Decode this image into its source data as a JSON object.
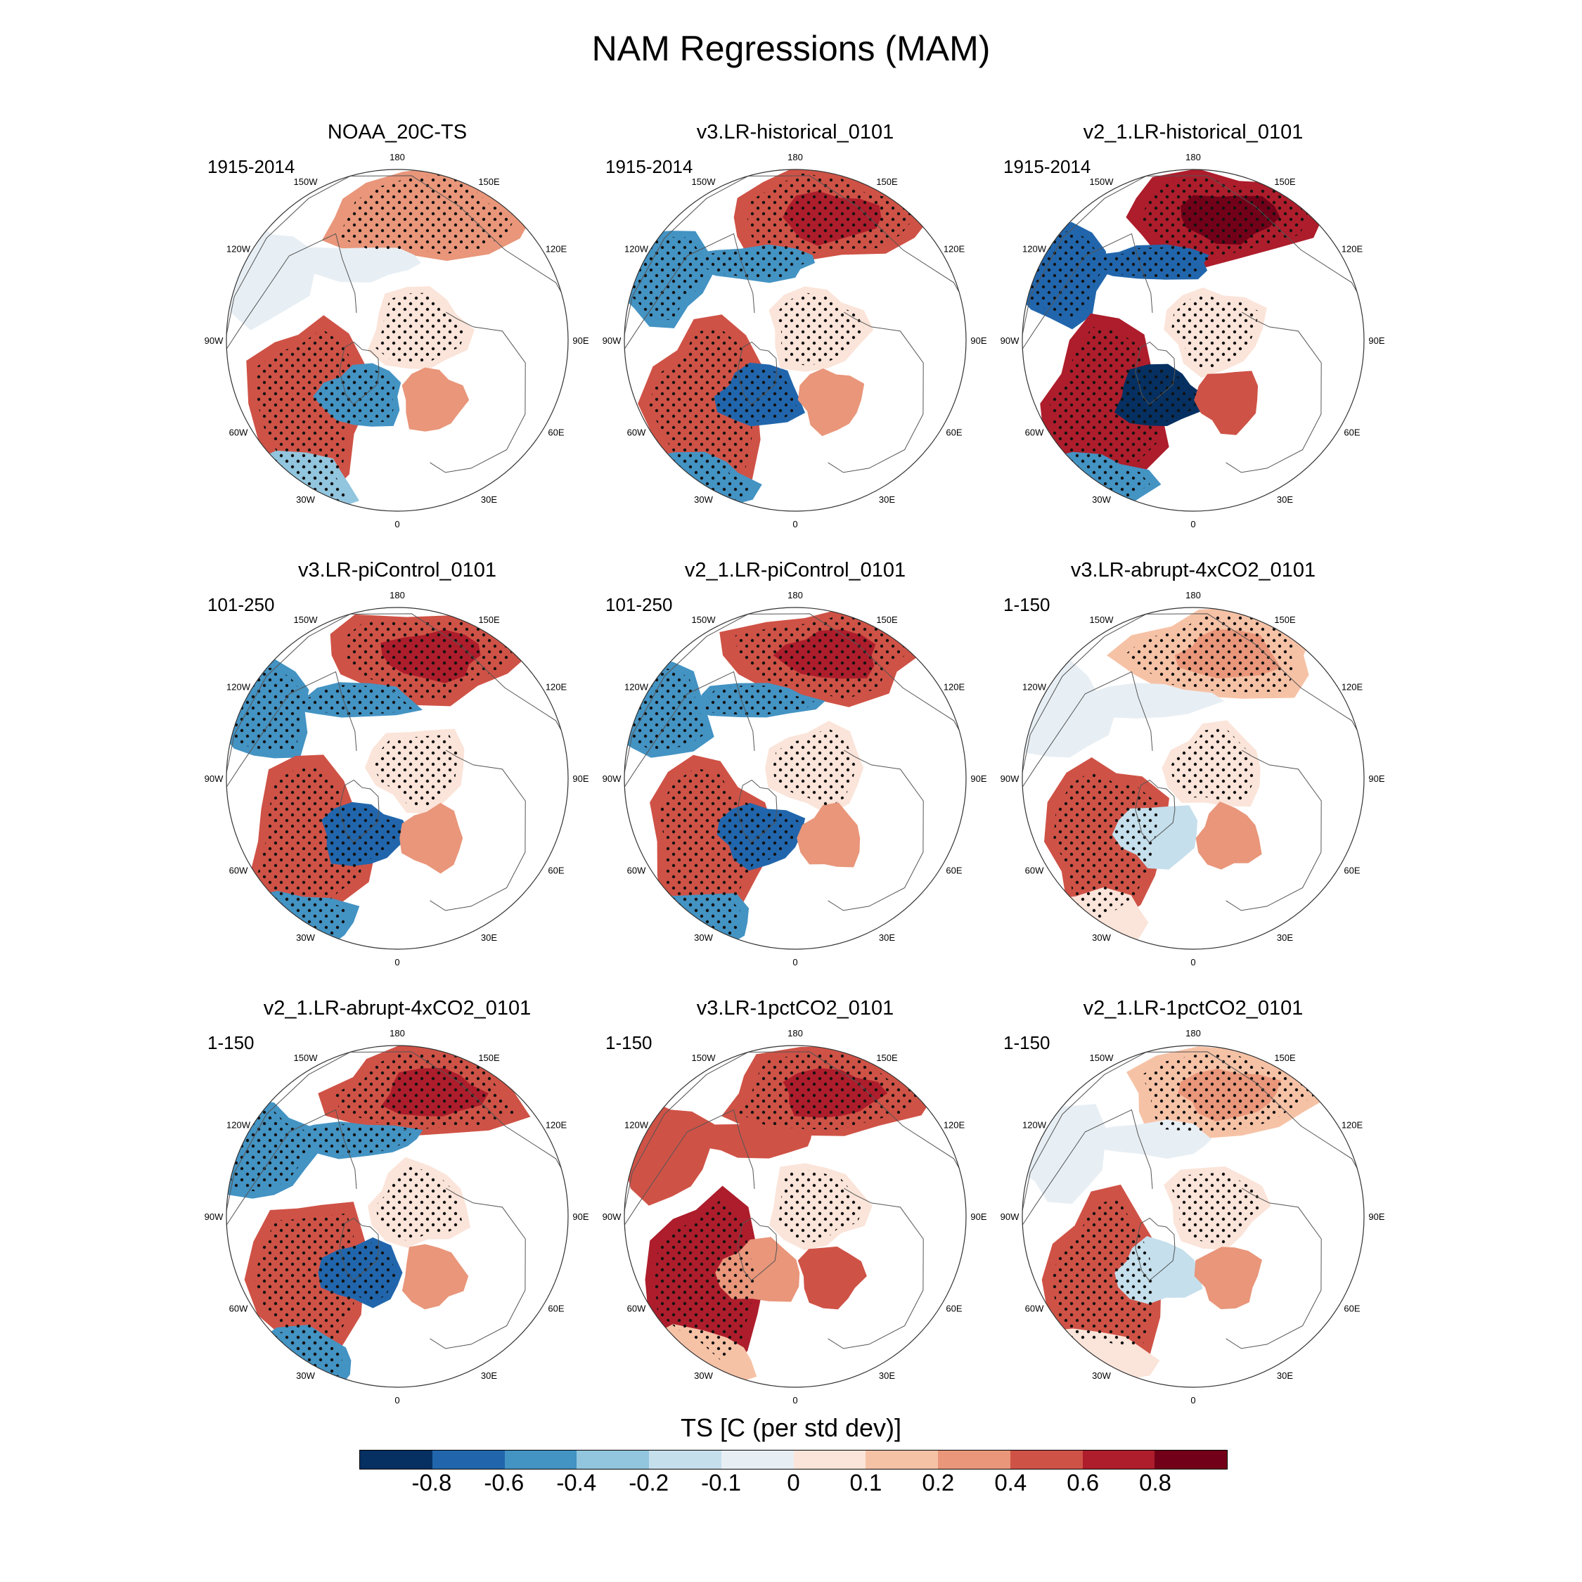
{
  "title": "NAM Regressions (MAM)",
  "panels": [
    {
      "title": "NOAA_20C-TS",
      "period": "1915-2014",
      "pattern": "obs"
    },
    {
      "title": "v3.LR-historical_0101",
      "period": "1915-2014",
      "pattern": "std"
    },
    {
      "title": "v2_1.LR-historical_0101",
      "period": "1915-2014",
      "pattern": "strong"
    },
    {
      "title": "v3.LR-piControl_0101",
      "period": "101-250",
      "pattern": "std"
    },
    {
      "title": "v2_1.LR-piControl_0101",
      "period": "101-250",
      "pattern": "std"
    },
    {
      "title": "v3.LR-abrupt-4xCO2_0101",
      "period": "1-150",
      "pattern": "weak"
    },
    {
      "title": "v2_1.LR-abrupt-4xCO2_0101",
      "period": "1-150",
      "pattern": "std"
    },
    {
      "title": "v3.LR-1pctCO2_0101",
      "period": "1-150",
      "pattern": "warm"
    },
    {
      "title": "v2_1.LR-1pctCO2_0101",
      "period": "1-150",
      "pattern": "weak"
    }
  ],
  "longitude_labels": [
    "180",
    "150E",
    "120E",
    "90E",
    "60E",
    "30E",
    "0",
    "30W",
    "60W",
    "90W",
    "120W",
    "150W"
  ],
  "colorbar": {
    "title": "TS [C (per std dev)]",
    "labels": [
      "-0.8",
      "-0.6",
      "-0.4",
      "-0.2",
      "-0.1",
      "0",
      "0.1",
      "0.2",
      "0.4",
      "0.6",
      "0.8"
    ],
    "colors": [
      "#053061",
      "#2166ac",
      "#4393c3",
      "#92c5de",
      "#c5dfec",
      "#e8eff4",
      "#fbe4d9",
      "#f6c2a6",
      "#e9967a",
      "#cf5246",
      "#ad1d2b",
      "#720018"
    ]
  }
}
